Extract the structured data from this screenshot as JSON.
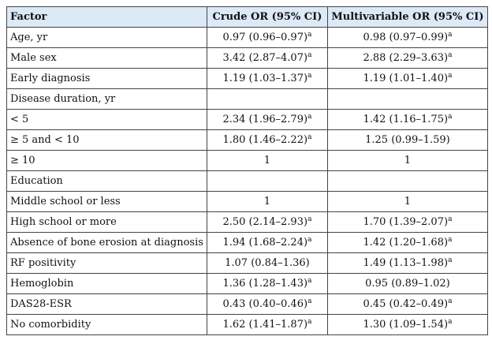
{
  "table": {
    "headers": [
      "Factor",
      "Crude OR (95% CI)",
      "Multivariable OR (95% CI)"
    ],
    "rows": [
      {
        "factor": "Age, yr",
        "crude": "0.97 (0.96–0.97)",
        "crude_sup": "a",
        "multi": "0.98 (0.97–0.99)",
        "multi_sup": "a"
      },
      {
        "factor": "Male sex",
        "crude": "3.42 (2.87–4.07)",
        "crude_sup": "a",
        "multi": "2.88 (2.29–3.63)",
        "multi_sup": "a"
      },
      {
        "factor": "Early diagnosis",
        "crude": "1.19 (1.03–1.37)",
        "crude_sup": "a",
        "multi": "1.19 (1.01–1.40)",
        "multi_sup": "a"
      },
      {
        "factor": "Disease duration, yr",
        "crude": "",
        "crude_sup": "",
        "multi": "",
        "multi_sup": ""
      },
      {
        "factor": "< 5",
        "crude": "2.34 (1.96–2.79)",
        "crude_sup": "a",
        "multi": "1.42 (1.16–1.75)",
        "multi_sup": "a"
      },
      {
        "factor": "≥ 5 and < 10",
        "crude": "1.80 (1.46–2.22)",
        "crude_sup": "a",
        "multi": "1.25 (0.99–1.59)",
        "multi_sup": ""
      },
      {
        "factor": "≥ 10",
        "crude": "1",
        "crude_sup": "",
        "multi": "1",
        "multi_sup": ""
      },
      {
        "factor": "Education",
        "crude": "",
        "crude_sup": "",
        "multi": "",
        "multi_sup": ""
      },
      {
        "factor": "Middle school or less",
        "crude": "1",
        "crude_sup": "",
        "multi": "1",
        "multi_sup": ""
      },
      {
        "factor": "High school or more",
        "crude": "2.50 (2.14–2.93)",
        "crude_sup": "a",
        "multi": "1.70 (1.39–2.07)",
        "multi_sup": "a"
      },
      {
        "factor": "Absence of bone erosion at diagnosis",
        "crude": "1.94 (1.68–2.24)",
        "crude_sup": "a",
        "multi": "1.42 (1.20–1.68)",
        "multi_sup": "a"
      },
      {
        "factor": "RF positivity",
        "crude": "1.07 (0.84–1.36)",
        "crude_sup": "",
        "multi": "1.49 (1.13–1.98)",
        "multi_sup": "a"
      },
      {
        "factor": "Hemoglobin",
        "crude": "1.36 (1.28–1.43)",
        "crude_sup": "a",
        "multi": "0.95 (0.89–1.02)",
        "multi_sup": ""
      },
      {
        "factor": "DAS28-ESR",
        "crude": "0.43 (0.40–0.46)",
        "crude_sup": "a",
        "multi": "0.45 (0.42–0.49)",
        "multi_sup": "a"
      },
      {
        "factor": "No comorbidity",
        "crude": "1.62 (1.41–1.87)",
        "crude_sup": "a",
        "multi": "1.30 (1.09–1.54)",
        "multi_sup": "a"
      }
    ]
  },
  "colors": {
    "header_bg": "#dce9f6",
    "border": "#444444",
    "text": "#111111"
  }
}
